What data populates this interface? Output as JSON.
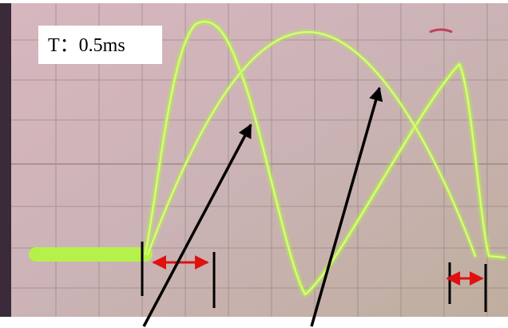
{
  "label": {
    "text": "T：0.5ms"
  }
}
